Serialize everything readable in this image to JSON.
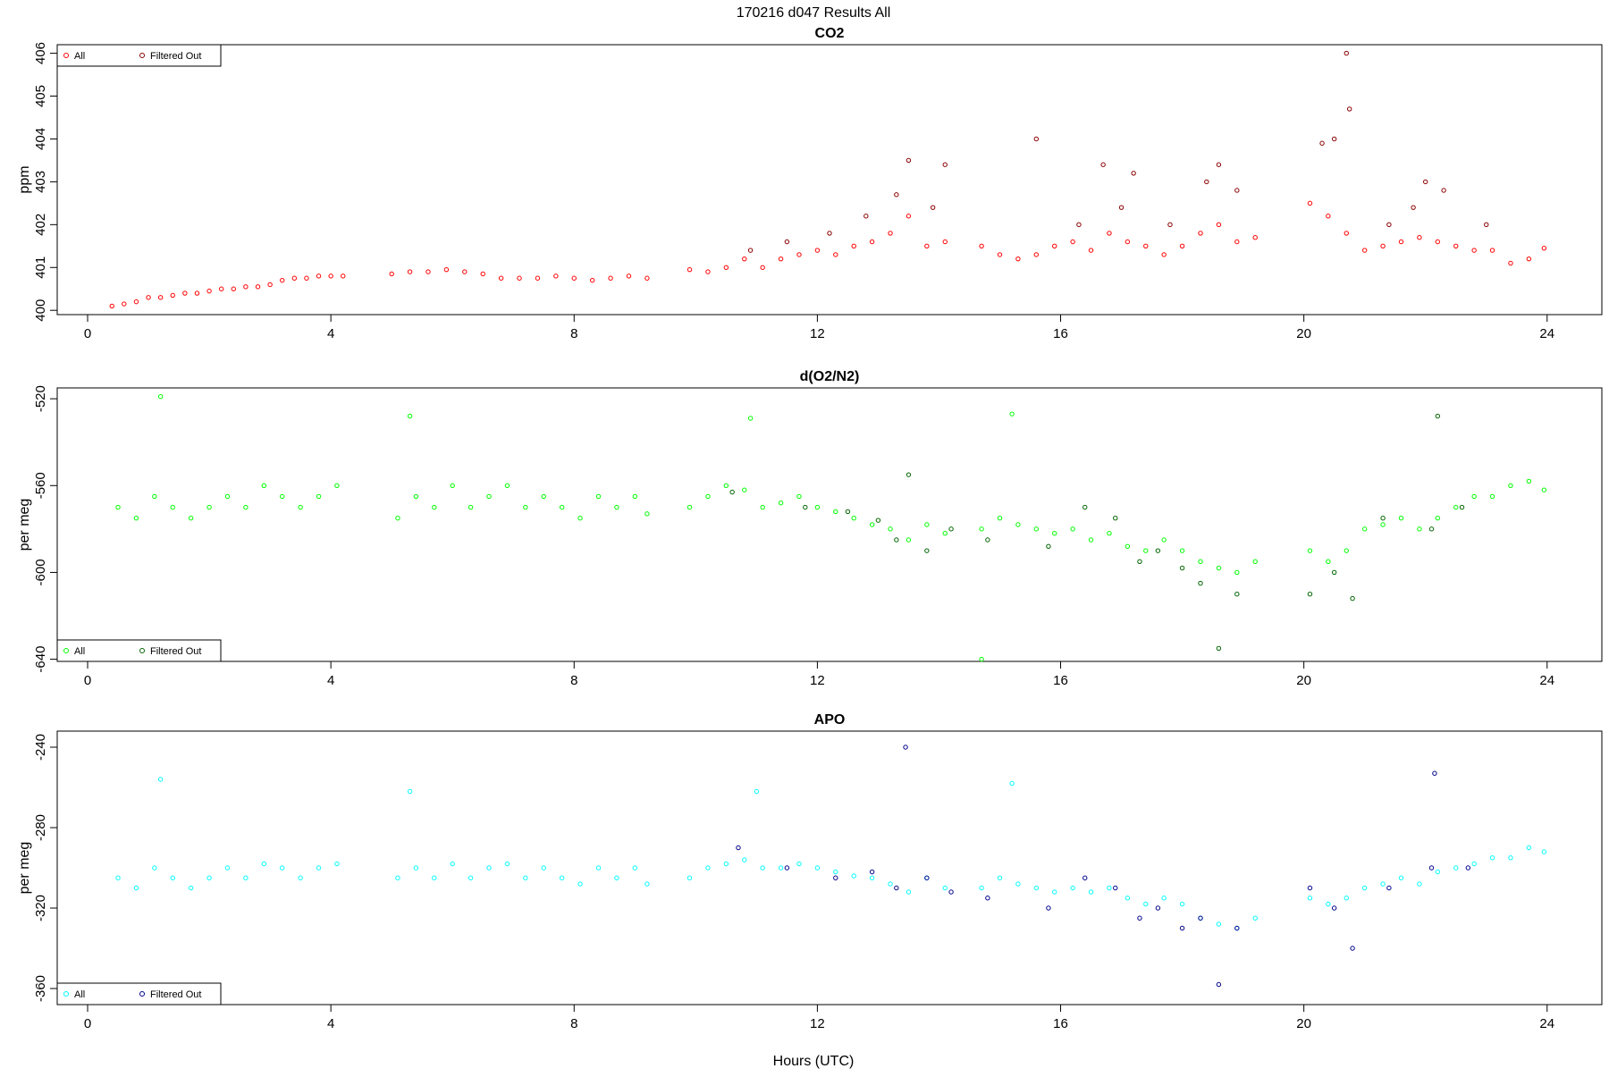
{
  "title": "170216   d047   Results All",
  "xlabel": "Hours (UTC)",
  "chart_data": [
    {
      "type": "scatter",
      "title": "CO2",
      "ylabel": "ppm",
      "xlim": [
        -0.5,
        24.9
      ],
      "ylim": [
        399.9,
        406.2
      ],
      "xticks": [
        0,
        4,
        8,
        12,
        16,
        20,
        24
      ],
      "yticks": [
        400,
        401,
        402,
        403,
        404,
        405,
        406
      ],
      "legend_position": "top-left",
      "colors": {
        "all": "#ff0000",
        "filtered": "#8b0000"
      },
      "series": [
        {
          "name": "All",
          "color": "#ff0000",
          "x": [
            0.4,
            0.6,
            0.8,
            1.0,
            1.2,
            1.4,
            1.6,
            1.8,
            2.0,
            2.2,
            2.4,
            2.6,
            2.8,
            3.0,
            3.2,
            3.4,
            3.6,
            3.8,
            4.0,
            4.2,
            5.0,
            5.3,
            5.6,
            5.9,
            6.2,
            6.5,
            6.8,
            7.1,
            7.4,
            7.7,
            8.0,
            8.3,
            8.6,
            8.9,
            9.2,
            9.9,
            10.2,
            10.5,
            10.8,
            11.1,
            11.4,
            11.7,
            12.0,
            12.3,
            12.6,
            12.9,
            13.2,
            13.5,
            13.8,
            14.1,
            14.7,
            15.0,
            15.3,
            15.6,
            15.9,
            16.2,
            16.5,
            16.8,
            17.1,
            17.4,
            17.7,
            18.0,
            18.3,
            18.6,
            18.9,
            19.2,
            20.1,
            20.4,
            20.7,
            21.0,
            21.3,
            21.6,
            21.9,
            22.2,
            22.5,
            22.8,
            23.1,
            23.4,
            23.7,
            23.95
          ],
          "y": [
            400.1,
            400.15,
            400.2,
            400.3,
            400.3,
            400.35,
            400.4,
            400.4,
            400.45,
            400.5,
            400.5,
            400.55,
            400.55,
            400.6,
            400.7,
            400.75,
            400.75,
            400.8,
            400.8,
            400.8,
            400.85,
            400.9,
            400.9,
            400.95,
            400.9,
            400.85,
            400.75,
            400.75,
            400.75,
            400.8,
            400.75,
            400.7,
            400.75,
            400.8,
            400.75,
            400.95,
            400.9,
            401.0,
            401.2,
            401.0,
            401.2,
            401.3,
            401.4,
            401.3,
            401.5,
            401.6,
            401.8,
            402.2,
            401.5,
            401.6,
            401.5,
            401.3,
            401.2,
            401.3,
            401.5,
            401.6,
            401.4,
            401.8,
            401.6,
            401.5,
            401.3,
            401.5,
            401.8,
            402.0,
            401.6,
            401.7,
            402.5,
            402.2,
            401.8,
            401.4,
            401.5,
            401.6,
            401.7,
            401.6,
            401.5,
            401.4,
            401.4,
            401.1,
            401.2,
            401.45
          ]
        },
        {
          "name": "Filtered Out",
          "color": "#8b0000",
          "x": [
            10.9,
            11.5,
            12.2,
            12.8,
            13.3,
            13.5,
            13.9,
            14.1,
            15.6,
            16.3,
            16.7,
            17.0,
            17.2,
            17.8,
            18.4,
            18.6,
            18.9,
            20.3,
            20.5,
            20.7,
            20.75,
            21.4,
            21.8,
            22.0,
            22.3,
            23.0
          ],
          "y": [
            401.4,
            401.6,
            401.8,
            402.2,
            402.7,
            403.5,
            402.4,
            403.4,
            404.0,
            402.0,
            403.4,
            402.4,
            403.2,
            402.0,
            403.0,
            403.4,
            402.8,
            403.9,
            404.0,
            406.0,
            404.7,
            402.0,
            402.4,
            403.0,
            402.8,
            402.0
          ]
        }
      ]
    },
    {
      "type": "scatter",
      "title": "d(O2/N2)",
      "ylabel": "per meg",
      "xlim": [
        -0.5,
        24.9
      ],
      "ylim": [
        -641,
        -515
      ],
      "xticks": [
        0,
        4,
        8,
        12,
        16,
        20,
        24
      ],
      "yticks": [
        -520,
        -560,
        -600,
        -640
      ],
      "legend_position": "bottom-left",
      "colors": {
        "all": "#00ff00",
        "filtered": "#006400"
      },
      "series": [
        {
          "name": "All",
          "color": "#00ff00",
          "x": [
            0.5,
            0.8,
            1.1,
            1.4,
            1.7,
            2.0,
            2.3,
            2.6,
            2.9,
            3.2,
            3.5,
            3.8,
            4.1,
            5.1,
            5.4,
            5.7,
            6.0,
            6.3,
            6.6,
            6.9,
            7.2,
            7.5,
            7.8,
            8.1,
            8.4,
            8.7,
            9.0,
            9.2,
            9.9,
            10.2,
            10.5,
            10.8,
            11.1,
            11.4,
            11.7,
            12.0,
            12.3,
            12.6,
            12.9,
            13.2,
            13.5,
            13.8,
            14.1,
            14.7,
            15.0,
            15.3,
            15.6,
            15.9,
            16.2,
            16.5,
            16.8,
            17.1,
            17.4,
            17.7,
            18.0,
            18.3,
            18.6,
            18.9,
            19.2,
            20.1,
            20.4,
            20.7,
            21.0,
            21.3,
            21.6,
            21.9,
            22.2,
            22.5,
            22.8,
            23.1,
            23.4,
            23.7,
            23.95,
            1.2,
            5.3,
            10.9,
            15.2,
            14.7
          ],
          "y": [
            -570,
            -575,
            -565,
            -570,
            -575,
            -570,
            -565,
            -570,
            -560,
            -565,
            -570,
            -565,
            -560,
            -575,
            -565,
            -570,
            -560,
            -570,
            -565,
            -560,
            -570,
            -565,
            -570,
            -575,
            -565,
            -570,
            -565,
            -573,
            -570,
            -565,
            -560,
            -562,
            -570,
            -568,
            -565,
            -570,
            -572,
            -575,
            -578,
            -580,
            -585,
            -578,
            -582,
            -580,
            -575,
            -578,
            -580,
            -582,
            -580,
            -585,
            -582,
            -588,
            -590,
            -585,
            -590,
            -595,
            -598,
            -600,
            -595,
            -590,
            -595,
            -590,
            -580,
            -578,
            -575,
            -580,
            -575,
            -570,
            -565,
            -565,
            -560,
            -558,
            -562,
            -519,
            -528,
            -529,
            -527,
            -640
          ]
        },
        {
          "name": "Filtered Out",
          "color": "#006400",
          "x": [
            10.6,
            11.8,
            12.5,
            13.0,
            13.3,
            13.5,
            13.8,
            14.2,
            14.8,
            15.8,
            16.4,
            16.9,
            17.3,
            17.6,
            18.0,
            18.3,
            18.6,
            18.9,
            20.1,
            20.5,
            20.8,
            21.3,
            22.1,
            22.2,
            22.6
          ],
          "y": [
            -563,
            -570,
            -572,
            -576,
            -585,
            -555,
            -590,
            -580,
            -585,
            -588,
            -570,
            -575,
            -595,
            -590,
            -598,
            -605,
            -635,
            -610,
            -610,
            -600,
            -612,
            -575,
            -580,
            -528,
            -570
          ]
        }
      ]
    },
    {
      "type": "scatter",
      "title": "APO",
      "ylabel": "per meg",
      "xlim": [
        -0.5,
        24.9
      ],
      "ylim": [
        -368,
        -232
      ],
      "xticks": [
        0,
        4,
        8,
        12,
        16,
        20,
        24
      ],
      "yticks": [
        -240,
        -280,
        -320,
        -360
      ],
      "legend_position": "bottom-left",
      "colors": {
        "all": "#00ffff",
        "filtered": "#00008b"
      },
      "series": [
        {
          "name": "All",
          "color": "#00ffff",
          "x": [
            0.5,
            0.8,
            1.1,
            1.4,
            1.7,
            2.0,
            2.3,
            2.6,
            2.9,
            3.2,
            3.5,
            3.8,
            4.1,
            5.1,
            5.4,
            5.7,
            6.0,
            6.3,
            6.6,
            6.9,
            7.2,
            7.5,
            7.8,
            8.1,
            8.4,
            8.7,
            9.0,
            9.2,
            9.9,
            10.2,
            10.5,
            10.8,
            11.1,
            11.4,
            11.7,
            12.0,
            12.3,
            12.6,
            12.9,
            13.2,
            13.5,
            13.8,
            14.1,
            14.7,
            15.0,
            15.3,
            15.6,
            15.9,
            16.2,
            16.5,
            16.8,
            17.1,
            17.4,
            17.7,
            18.0,
            18.3,
            18.6,
            18.9,
            19.2,
            20.1,
            20.4,
            20.7,
            21.0,
            21.3,
            21.6,
            21.9,
            22.2,
            22.5,
            22.8,
            23.1,
            23.4,
            23.7,
            23.95,
            1.2,
            5.3,
            11.0,
            15.2
          ],
          "y": [
            -305,
            -310,
            -300,
            -305,
            -310,
            -305,
            -300,
            -305,
            -298,
            -300,
            -305,
            -300,
            -298,
            -305,
            -300,
            -305,
            -298,
            -305,
            -300,
            -298,
            -305,
            -300,
            -305,
            -308,
            -300,
            -305,
            -300,
            -308,
            -305,
            -300,
            -298,
            -296,
            -300,
            -300,
            -298,
            -300,
            -302,
            -304,
            -305,
            -308,
            -312,
            -305,
            -310,
            -310,
            -305,
            -308,
            -310,
            -312,
            -310,
            -312,
            -310,
            -315,
            -318,
            -315,
            -318,
            -325,
            -328,
            -330,
            -325,
            -315,
            -318,
            -315,
            -310,
            -308,
            -305,
            -308,
            -302,
            -300,
            -298,
            -295,
            -295,
            -290,
            -292,
            -256,
            -262,
            -262,
            -258
          ]
        },
        {
          "name": "Filtered Out",
          "color": "#00008b",
          "x": [
            10.7,
            11.5,
            12.3,
            12.9,
            13.3,
            13.45,
            13.8,
            14.2,
            14.8,
            15.8,
            16.4,
            16.9,
            17.3,
            17.6,
            18.0,
            18.3,
            18.6,
            18.9,
            20.1,
            20.5,
            20.8,
            21.4,
            22.1,
            22.15,
            22.7
          ],
          "y": [
            -290,
            -300,
            -305,
            -302,
            -310,
            -240,
            -305,
            -312,
            -315,
            -320,
            -305,
            -310,
            -325,
            -320,
            -330,
            -325,
            -358,
            -330,
            -310,
            -320,
            -340,
            -310,
            -300,
            -253,
            -300
          ]
        }
      ]
    }
  ]
}
